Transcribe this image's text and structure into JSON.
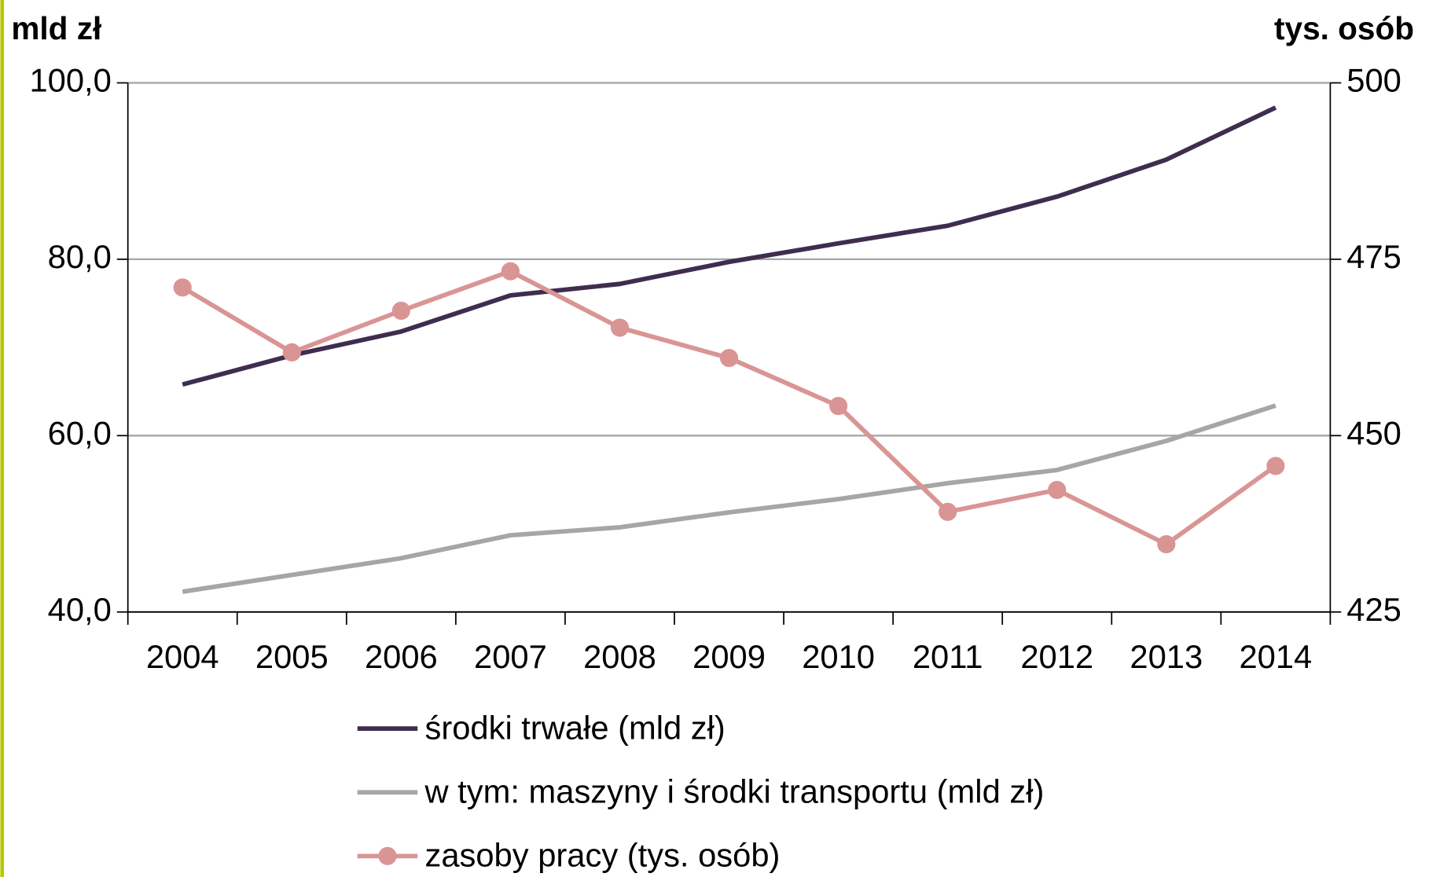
{
  "chart_data": {
    "type": "line",
    "y_label": "mld zł",
    "y2_label": "tys. osób",
    "categories": [
      "2004",
      "2005",
      "2006",
      "2007",
      "2008",
      "2009",
      "2010",
      "2011",
      "2012",
      "2013",
      "2014"
    ],
    "series": [
      {
        "name": "środki trwałe (mld zł)",
        "color": "#3f2d4f",
        "values": [
          65.8,
          69.1,
          71.8,
          75.9,
          77.2,
          79.7,
          81.8,
          83.8,
          87.1,
          91.3,
          97.2
        ]
      },
      {
        "name": "w tym: maszyny i środki transportu (mld zł)",
        "color": "#a6a6a6",
        "values": [
          42.3,
          44.2,
          46.1,
          48.7,
          49.6,
          51.3,
          52.8,
          54.6,
          56.1,
          59.4,
          63.4
        ]
      },
      {
        "name": "zasoby pracy (tys. osób)",
        "color": "#d99594",
        "axis": "y2",
        "marker": true,
        "values": [
          471.0,
          461.8,
          467.7,
          473.3,
          465.3,
          461.0,
          454.2,
          439.2,
          442.3,
          434.6,
          445.7
        ]
      }
    ],
    "ylim": [
      40,
      100
    ],
    "yticks": [
      {
        "value": 40,
        "label": "40,0"
      },
      {
        "value": 60,
        "label": "60,0"
      },
      {
        "value": 80,
        "label": "80,0"
      },
      {
        "value": 100,
        "label": "100,0"
      }
    ],
    "y2lim": [
      425,
      500
    ],
    "y2ticks": [
      425,
      450,
      475,
      500
    ],
    "grid": true,
    "legend": "bottom"
  }
}
